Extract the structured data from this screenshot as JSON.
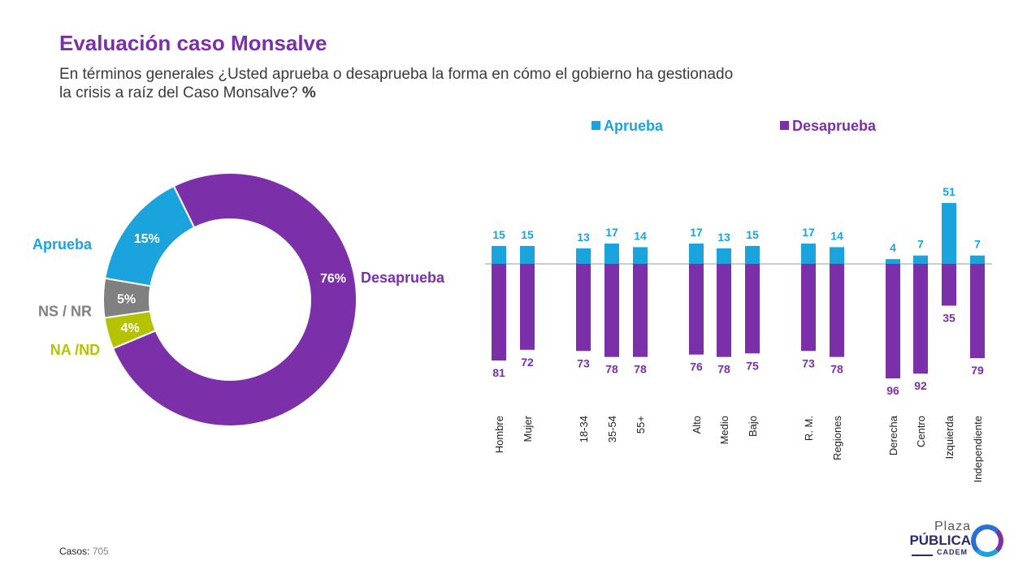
{
  "header": {
    "title": "Evaluación caso Monsalve",
    "subtitle": "En términos generales ¿Usted aprueba o desaprueba la forma en cómo el gobierno ha gestionado la crisis a raíz del Caso Monsalve?",
    "subtitle_unit": "%"
  },
  "legend": {
    "aprueba": "Aprueba",
    "desaprueba": "Desaprueba"
  },
  "colors": {
    "aprueba": "#1ba3dd",
    "desaprueba": "#7b2fa8",
    "nsnr": "#808080",
    "nand": "#b5c200",
    "text": "#3b3b3b"
  },
  "footer": {
    "casos_label": "Casos:",
    "casos_value": "705"
  },
  "logo": {
    "line1": "Plaza",
    "line2": "PÚBLICA",
    "line3": "CADEM"
  },
  "chart_data": [
    {
      "type": "pie",
      "variant": "donut",
      "slices": [
        {
          "name": "Desaprueba",
          "value": 76,
          "value_label": "76%",
          "color": "#7b2fa8"
        },
        {
          "name": "NA /ND",
          "value": 4,
          "value_label": "4%",
          "color": "#b5c200"
        },
        {
          "name": "NS / NR",
          "value": 5,
          "value_label": "5%",
          "color": "#808080"
        },
        {
          "name": "Aprueba",
          "value": 15,
          "value_label": "15%",
          "color": "#1ba3dd"
        }
      ]
    },
    {
      "type": "bar",
      "orientation": "diverging",
      "categories": [
        "Hombre",
        "Mujer",
        "18-34",
        "35-54",
        "55+",
        "Alto",
        "Medio",
        "Bajo",
        "R. M.",
        "Regiones",
        "Derecha",
        "Centro",
        "Izquierda",
        "Independiente"
      ],
      "groups": [
        [
          "Hombre",
          "Mujer"
        ],
        [
          "18-34",
          "35-54",
          "55+"
        ],
        [
          "Alto",
          "Medio",
          "Bajo"
        ],
        [
          "R. M.",
          "Regiones"
        ],
        [
          "Derecha",
          "Centro",
          "Izquierda",
          "Independiente"
        ]
      ],
      "series": [
        {
          "name": "Aprueba",
          "direction": "up",
          "color": "#1ba3dd",
          "values": [
            15,
            15,
            13,
            17,
            14,
            17,
            13,
            15,
            17,
            14,
            4,
            7,
            51,
            7
          ]
        },
        {
          "name": "Desaprueba",
          "direction": "down",
          "color": "#7b2fa8",
          "values": [
            81,
            72,
            73,
            78,
            78,
            76,
            78,
            75,
            73,
            78,
            96,
            92,
            35,
            79
          ]
        }
      ],
      "legend_position": "top"
    }
  ]
}
